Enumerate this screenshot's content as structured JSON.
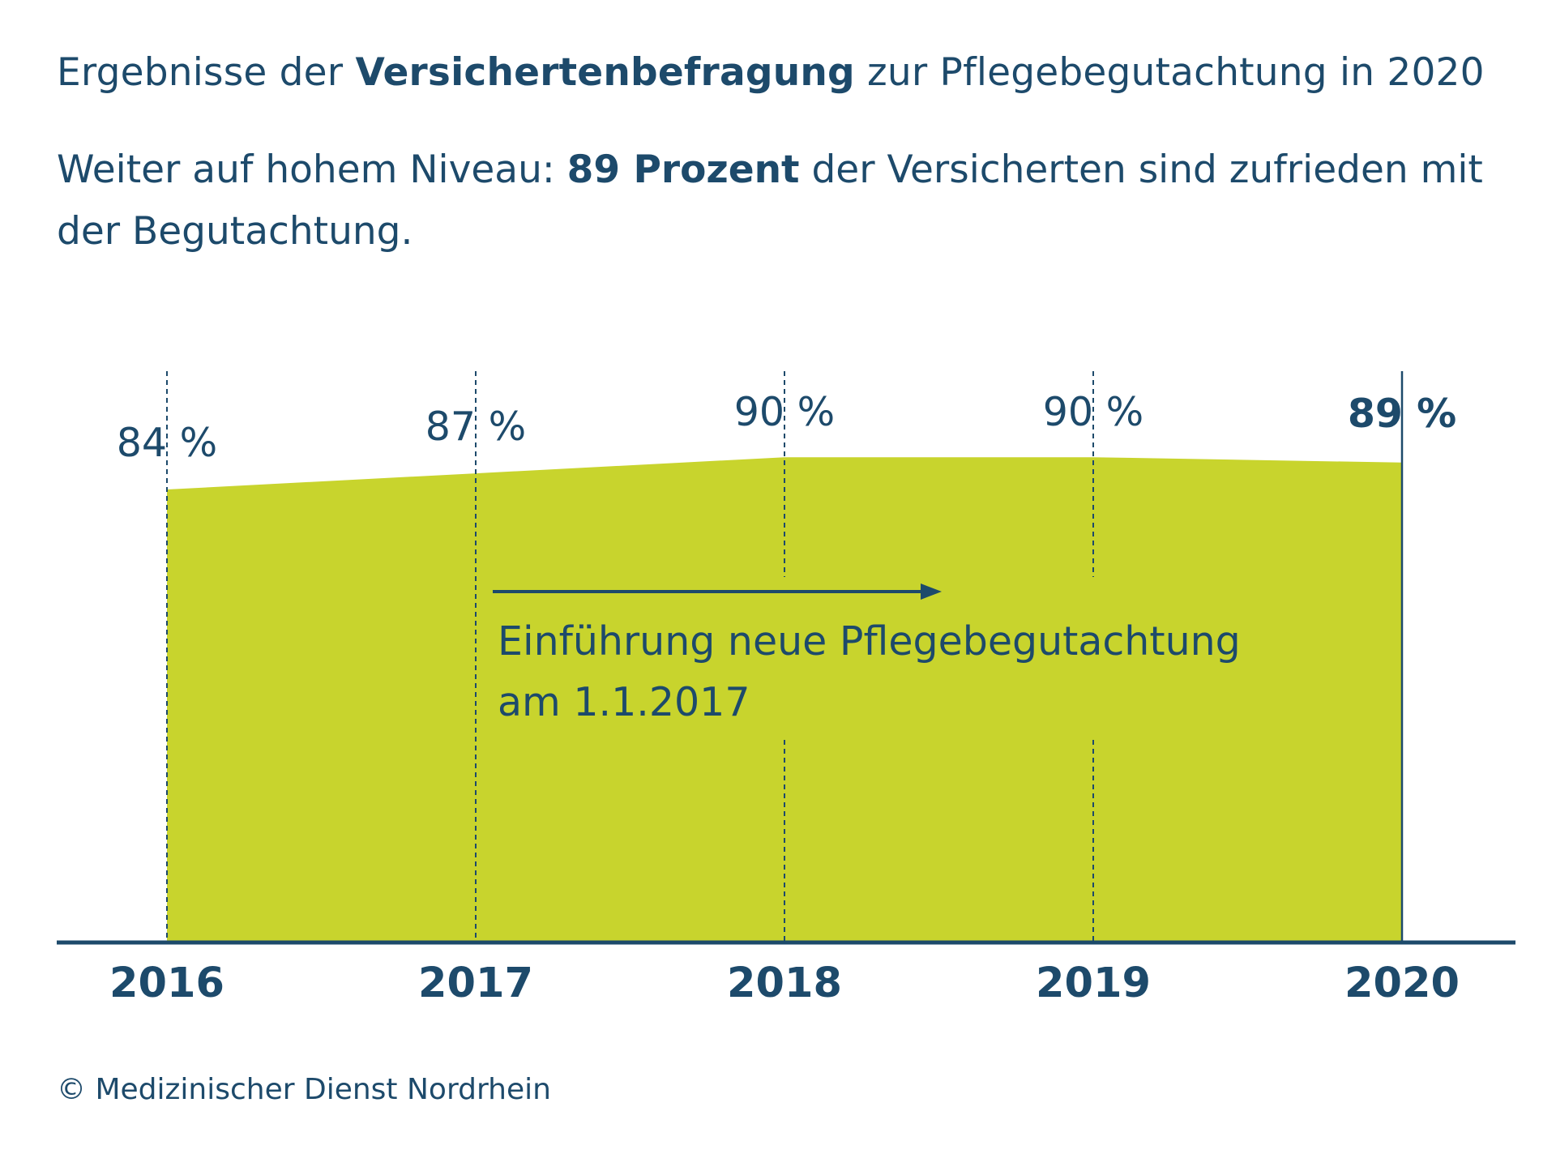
{
  "header": {
    "title_pre": "Ergebnisse der ",
    "title_bold": "Versichertenbefragung",
    "title_post": " zur Pflegebegutachtung in 2020",
    "subtitle_pre": "Weiter auf hohem Niveau: ",
    "subtitle_bold": "89 Prozent",
    "subtitle_post": " der Versicherten sind zufrieden mit der Begutachtung."
  },
  "chart_data": {
    "type": "area",
    "categories": [
      "2016",
      "2017",
      "2018",
      "2019",
      "2020"
    ],
    "values": [
      84,
      87,
      90,
      90,
      89
    ],
    "value_labels": [
      "84 %",
      "87 %",
      "90 %",
      "90 %",
      "89 %"
    ],
    "highlight_last": true,
    "annotation": {
      "line1": "Einführung neue Pflegebegutachtung",
      "line2": "am 1.1.2017"
    },
    "colors": {
      "area": "#c8d42d",
      "text": "#1d4a6b",
      "axis": "#1d4a6b"
    }
  },
  "footer": {
    "credit": "© Medizinischer Dienst Nordrhein"
  }
}
